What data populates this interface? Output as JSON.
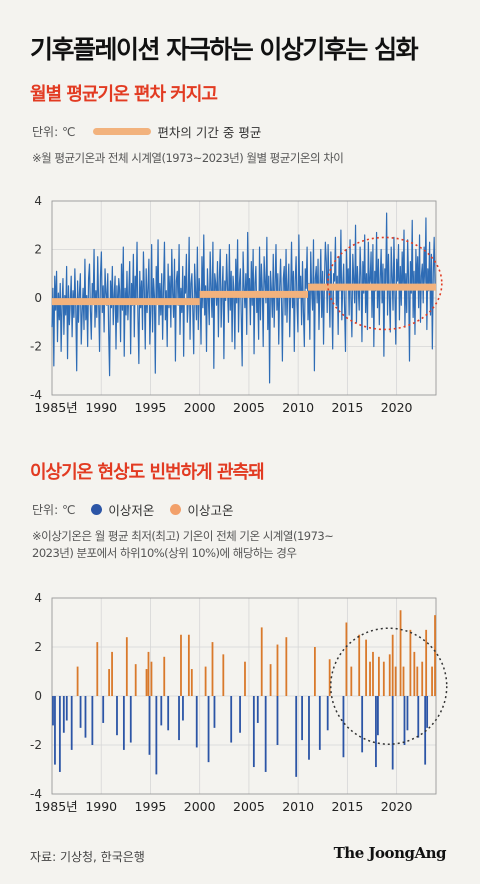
{
  "header": {
    "title": "기후플레이션 자극하는 이상기후는 심화"
  },
  "chart1": {
    "subtitle": "월별 평균기온 편차 커지고",
    "unit": "단위: ℃",
    "legend_label": "편차의 기간 중 평균",
    "note": "※월 평균기온과 전체 시계열(1973~2023년) 월별 평균기온의 차이"
  },
  "chart2": {
    "subtitle": "이상기온 현상도 빈번하게 관측돼",
    "unit": "단위: ℃",
    "legend_low": "이상저온",
    "legend_high": "이상고온",
    "note_line1": "※이상기온은 월 평균 최저(최고) 기온이 전체 기온 시계열(1973~",
    "note_line2": "2023년) 분포에서 하위10%(상위 10%)에 해당하는 경우"
  },
  "footer": {
    "source": "자료: 기상청, 한국은행",
    "brand": "The JoongAng"
  },
  "colors": {
    "accent_red": "#e23b22",
    "line_blue": "#2e6cb5",
    "mean_orange": "#f2b27d",
    "low_blue": "#2c55a6",
    "high_orange": "#d9792b"
  },
  "chart_data": [
    {
      "type": "line",
      "title": "월별 평균기온 편차 커지고",
      "ylabel": "단위: ℃",
      "ylim": [
        -4,
        4
      ],
      "xlim": [
        1985,
        2024
      ],
      "x_ticks": [
        "1985년",
        "1990",
        "1995",
        "2000",
        "2005",
        "2010",
        "2015",
        "2020"
      ],
      "y_ticks": [
        "4",
        "2",
        "0",
        "-2",
        "-4"
      ],
      "annotation": "dotted ellipse highlighting 2013–2024",
      "series": [
        {
          "name": "",
          "x_start": 1985,
          "x_step_months": 1,
          "values": [
            -1.2,
            0.4,
            -2.8,
            0.9,
            -0.5,
            1.1,
            -1.8,
            0.2,
            -0.9,
            0.6,
            -2.2,
            -0.3,
            0.8,
            -1.5,
            0.1,
            -0.7,
            1.3,
            -2.5,
            0.5,
            -1.1,
            -0.2,
            0.9,
            -1.6,
            0.3,
            -0.8,
            1.2,
            -0.4,
            -3.0,
            0.7,
            -1.0,
            0.2,
            1.0,
            -1.9,
            -0.6,
            0.4,
            -1.3,
            1.6,
            -0.9,
            0.1,
            -2.0,
            0.8,
            1.4,
            -0.5,
            -1.7,
            0.6,
            -0.2,
            2.0,
            -1.2,
            0.3,
            -0.8,
            1.7,
            -0.1,
            -2.2,
            0.9,
            1.9,
            -0.6,
            0.5,
            -1.4,
            1.2,
            0.2,
            -0.3,
            1.0,
            -1.5,
            -3.2,
            0.7,
            -0.4,
            1.3,
            -1.1,
            0.1,
            0.9,
            -2.1,
            0.5,
            -1.0,
            0.8,
            0.3,
            -1.8,
            1.4,
            -0.5,
            2.1,
            -2.4,
            0.4,
            -0.7,
            1.1,
            -0.9,
            0.2,
            1.5,
            -2.3,
            0.6,
            -0.3,
            1.8,
            -1.6,
            0.9,
            -0.1,
            2.3,
            -0.8,
            -2.7,
            1.1,
            -0.4,
            0.7,
            -1.3,
            1.9,
            0.3,
            -2.1,
            1.2,
            -0.6,
            0.4,
            1.6,
            -1.9,
            -0.5,
            2.2,
            -1.4,
            0.8,
            0.1,
            -3.1,
            1.3,
            -0.2,
            2.4,
            -1.1,
            0.6,
            -0.7,
            1.0,
            -1.7,
            0.5,
            2.3,
            -0.9,
            0.3,
            -2.0,
            1.4,
            -0.4,
            0.9,
            -1.2,
            2.0,
            0.2,
            -0.8,
            1.6,
            -2.6,
            0.7,
            1.1,
            -0.3,
            2.2,
            -1.5,
            0.4,
            -0.6,
            1.3,
            -2.4,
            0.9,
            0.2,
            1.8,
            -1.0,
            -0.2,
            2.5,
            -1.7,
            0.6,
            1.0,
            -0.5,
            -2.3,
            1.4,
            0.3,
            -0.9,
            2.1,
            -1.3,
            0.8,
            0.1,
            -1.9,
            1.7,
            -0.4,
            2.6,
            -0.7,
            0.5,
            -2.2,
            1.2,
            0.0,
            -1.1,
            1.9,
            0.4,
            -0.8,
            2.3,
            -2.9,
            1.0,
            0.6,
            -0.3,
            1.5,
            -1.6,
            0.8,
            2.0,
            -1.2,
            0.2,
            1.3,
            -2.5,
            0.7,
            -0.1,
            1.8,
            0.4,
            -1.0,
            2.2,
            -0.5,
            1.1,
            -1.8,
            0.9,
            0.3,
            -2.1,
            1.6,
            -0.2,
            2.4,
            -1.4,
            0.6,
            1.2,
            -0.7,
            -2.8,
            1.9,
            0.5,
            -0.4,
            1.0,
            -1.5,
            2.7,
            0.1,
            0.8,
            -1.1,
            1.5,
            -0.3,
            2.0,
            -2.3,
            0.6,
            1.3,
            -0.6,
            0.2,
            -1.7,
            2.1,
            -0.9,
            1.4,
            0.4,
            -2.0,
            1.7,
            0.7,
            -0.2,
            2.5,
            -1.3,
            0.9,
            -3.5,
            1.1,
            0.3,
            -0.8,
            1.8,
            -1.2,
            0.6,
            2.2,
            -0.5,
            1.0,
            -1.9,
            0.4,
            1.6,
            -0.1,
            -2.6,
            0.8,
            1.3,
            -0.7,
            2.0,
            -1.0,
            0.5,
            1.4,
            -1.6,
            0.2,
            2.3,
            -0.4,
            1.1,
            -2.2,
            0.7,
            1.7,
            -0.3,
            -1.4,
            2.6,
            0.0,
            0.9,
            -1.1,
            1.5,
            -0.6,
            -2.0,
            1.2,
            0.4,
            2.1,
            -0.9,
            0.6,
            -1.7,
            1.9,
            0.3,
            -0.5,
            2.4,
            -3.0,
            0.8,
            1.3,
            -0.2,
            1.6,
            -1.3,
            0.5,
            2.0,
            -0.8,
            1.1,
            -1.9,
            0.7,
            2.3,
            1.5,
            -0.6,
            2.2,
            0.4,
            -1.2,
            1.9,
            0.1,
            -2.1,
            1.0,
            0.7,
            2.5,
            -0.3,
            0.9,
            -1.5,
            1.7,
            0.3,
            2.8,
            -0.9,
            0.5,
            1.4,
            -0.4,
            -2.2,
            2.0,
            0.6,
            1.2,
            -0.7,
            2.4,
            0.0,
            -1.6,
            1.8,
            0.8,
            -0.2,
            3.0,
            -1.0,
            1.3,
            0.4,
            -0.5,
            2.1,
            0.9,
            -1.8,
            1.5,
            0.2,
            2.6,
            -0.6,
            1.0,
            -1.3,
            2.3,
            0.5,
            0.7,
            1.9,
            -0.8,
            2.2,
            -2.0,
            1.1,
            0.3,
            2.7,
            -0.4,
            1.6,
            -1.1,
            0.8,
            2.0,
            -0.2,
            1.4,
            -2.4,
            1.2,
            0.6,
            3.5,
            -0.7,
            1.8,
            0.1,
            -1.4,
            2.1,
            0.9,
            -0.5,
            2.5,
            0.3,
            -1.9,
            1.6,
            0.7,
            2.2,
            -0.9,
            1.3,
            -0.3,
            1.9,
            0.4,
            2.8,
            -1.2,
            1.0,
            -0.6,
            2.4,
            0.8,
            -2.6,
            1.5,
            0.2,
            3.2,
            -0.8,
            1.1,
            -1.5,
            2.0,
            0.5,
            1.7,
            -0.4,
            2.6,
            -1.0,
            0.9,
            1.4,
            -0.2,
            2.1,
            0.6,
            3.3,
            -1.3,
            1.2,
            0.3,
            2.3,
            -0.7,
            1.8,
            -2.1,
            1.0,
            2.5,
            0.4
          ]
        },
        {
          "name": "편차의 기간 중 평균",
          "segments": [
            {
              "x_from": 1985,
              "x_to": 2000,
              "y": -0.15
            },
            {
              "x_from": 2000,
              "x_to": 2011,
              "y": 0.15
            },
            {
              "x_from": 2011,
              "x_to": 2024,
              "y": 0.45
            }
          ]
        }
      ]
    },
    {
      "type": "bar",
      "title": "이상기온 현상도 빈번하게 관측돼",
      "ylabel": "단위: ℃",
      "ylim": [
        -4,
        4
      ],
      "xlim": [
        1985,
        2024
      ],
      "x_ticks": [
        "1985년",
        "1990",
        "1995",
        "2000",
        "2005",
        "2010",
        "2015",
        "2020"
      ],
      "y_ticks": [
        "4",
        "2",
        "0",
        "-2",
        "-4"
      ],
      "annotation": "dotted circle highlighting 2016–2024",
      "series": [
        {
          "name": "이상저온",
          "x": [
            1985.1,
            1985.3,
            1985.8,
            1986.2,
            1986.5,
            1987.0,
            1987.9,
            1988.4,
            1989.1,
            1990.2,
            1991.6,
            1992.3,
            1993.0,
            1994.9,
            1995.6,
            1996.1,
            1996.8,
            1997.9,
            1998.3,
            1999.7,
            2000.9,
            2001.5,
            2003.2,
            2004.1,
            2005.5,
            2005.9,
            2006.7,
            2007.9,
            2009.8,
            2010.4,
            2011.1,
            2012.2,
            2013.0,
            2014.6,
            2016.5,
            2017.9,
            2018.1,
            2019.6,
            2020.8,
            2021.1,
            2022.2,
            2022.9,
            2023.1
          ],
          "values": [
            -1.2,
            -2.8,
            -3.1,
            -1.5,
            -1.0,
            -2.2,
            -1.3,
            -1.7,
            -2.0,
            -1.1,
            -1.6,
            -2.2,
            -1.9,
            -2.4,
            -3.2,
            -1.2,
            -1.4,
            -1.8,
            -1.0,
            -2.1,
            -2.7,
            -1.3,
            -1.9,
            -1.5,
            -2.9,
            -1.1,
            -3.1,
            -2.0,
            -3.3,
            -1.8,
            -2.6,
            -2.2,
            -1.4,
            -2.5,
            -2.3,
            -2.9,
            -1.6,
            -3.0,
            -2.0,
            -1.4,
            -1.7,
            -2.8,
            -1.3
          ]
        },
        {
          "name": "이상고온",
          "x": [
            1987.6,
            1989.6,
            1990.8,
            1991.1,
            1992.6,
            1993.5,
            1994.6,
            1994.8,
            1995.1,
            1996.4,
            1998.1,
            1998.9,
            1999.2,
            2000.6,
            2001.3,
            2002.4,
            2004.6,
            2006.3,
            2007.2,
            2007.9,
            2008.8,
            2011.7,
            2013.2,
            2014.9,
            2015.4,
            2016.2,
            2016.9,
            2017.3,
            2017.6,
            2018.2,
            2018.7,
            2019.3,
            2019.6,
            2019.9,
            2020.4,
            2020.7,
            2021.4,
            2021.8,
            2022.1,
            2022.6,
            2023.0,
            2023.6,
            2023.9
          ],
          "values": [
            1.2,
            2.2,
            1.1,
            1.8,
            2.4,
            1.3,
            1.1,
            1.8,
            1.4,
            1.6,
            2.5,
            2.5,
            1.1,
            1.2,
            2.2,
            1.7,
            1.4,
            2.8,
            1.3,
            2.1,
            2.4,
            2.0,
            1.5,
            3.0,
            1.2,
            2.5,
            2.3,
            1.4,
            1.8,
            1.6,
            1.4,
            1.7,
            2.5,
            1.2,
            3.5,
            1.2,
            2.7,
            1.8,
            1.2,
            1.4,
            2.7,
            1.2,
            3.3
          ]
        }
      ]
    }
  ]
}
